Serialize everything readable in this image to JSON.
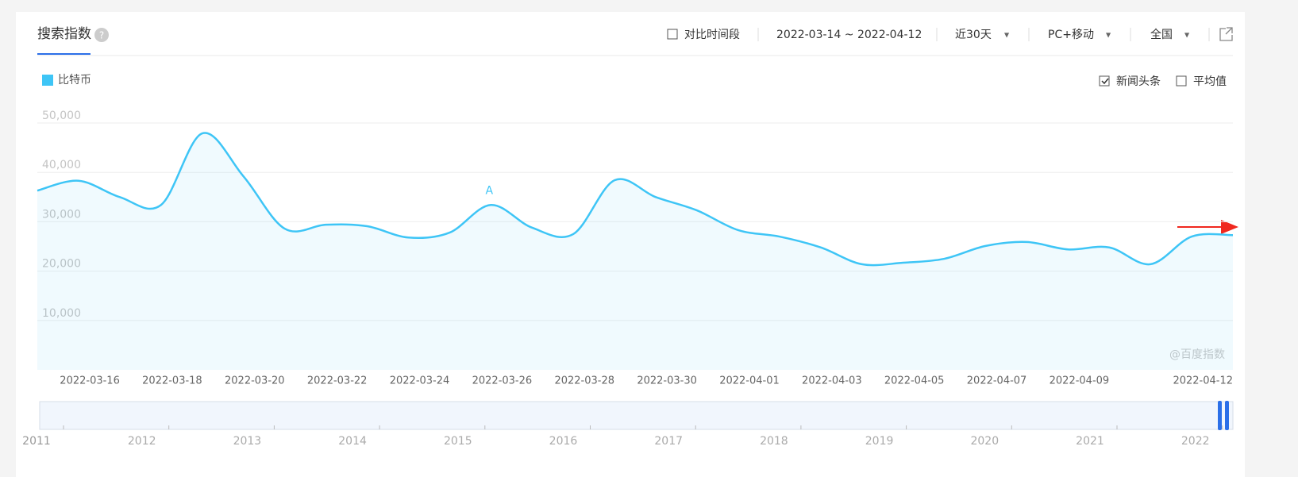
{
  "header": {
    "title": "搜索指数",
    "compare": "对比时间段",
    "date_range": "2022-03-14 ~ 2022-04-12",
    "period": "近30天",
    "device": "PC+移动",
    "region": "全国"
  },
  "options": {
    "news": "新闻头条",
    "average": "平均值"
  },
  "chart_data": {
    "type": "line",
    "categories": [
      null,
      null,
      "2022-03-16",
      null,
      "2022-03-18",
      null,
      "2022-03-20",
      null,
      "2022-03-22",
      null,
      "2022-03-24",
      null,
      "2022-03-26",
      null,
      "2022-03-28",
      null,
      "2022-03-30",
      null,
      "2022-04-01",
      null,
      "2022-04-03",
      null,
      "2022-04-05",
      null,
      "2022-04-07",
      null,
      "2022-04-09",
      null,
      null,
      "2022-04-12"
    ],
    "series": [
      {
        "name": "比特币",
        "color": "#3ec5f6",
        "values": [
          36300,
          38300,
          35000,
          33400,
          47900,
          39200,
          28600,
          29400,
          29100,
          26800,
          27800,
          33400,
          28800,
          27500,
          38400,
          35000,
          32300,
          28300,
          27000,
          24800,
          21400,
          21700,
          22500,
          25100,
          25900,
          24400,
          24800,
          21400,
          27000,
          27300
        ]
      }
    ],
    "ylim": [
      0,
      50000
    ],
    "yticks": [
      {
        "value": 10000,
        "label": "10,000"
      },
      {
        "value": 20000,
        "label": "20,000"
      },
      {
        "value": 30000,
        "label": "30,000"
      },
      {
        "value": 40000,
        "label": "40,000"
      },
      {
        "value": 50000,
        "label": "50,000"
      }
    ],
    "grid": true,
    "annotations": [
      {
        "text": "A"
      }
    ],
    "watermark": "@百度指数"
  },
  "navigator": {
    "years": [
      "2011",
      "2012",
      "2013",
      "2014",
      "2015",
      "2016",
      "2017",
      "2018",
      "2019",
      "2020",
      "2021",
      "2022"
    ]
  }
}
